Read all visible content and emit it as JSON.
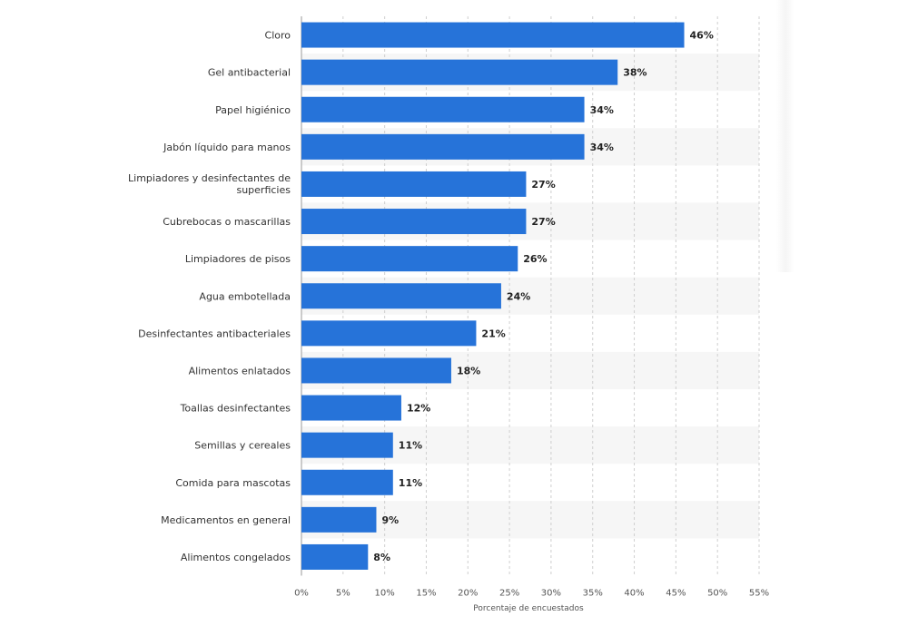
{
  "chart_data": {
    "type": "bar",
    "orientation": "horizontal",
    "title": "",
    "xlabel": "Porcentaje de encuestados",
    "ylabel": "",
    "xlim": [
      0,
      55
    ],
    "grid": true,
    "categories": [
      "Cloro",
      "Gel antibacterial",
      "Papel higiénico",
      "Jabón líquido para manos",
      "Limpiadores y desinfectantes de superficies",
      "Cubrebocas o mascarillas",
      "Limpiadores de pisos",
      "Agua embotellada",
      "Desinfectantes antibacteriales",
      "Alimentos enlatados",
      "Toallas desinfectantes",
      "Semillas y cereales",
      "Comida para mascotas",
      "Medicamentos en general",
      "Alimentos congelados"
    ],
    "values": [
      46,
      38,
      34,
      34,
      27,
      27,
      26,
      24,
      21,
      18,
      12,
      11,
      11,
      9,
      8
    ],
    "value_labels": [
      "46%",
      "38%",
      "34%",
      "34%",
      "27%",
      "27%",
      "26%",
      "24%",
      "21%",
      "18%",
      "12%",
      "11%",
      "11%",
      "9%",
      "8%"
    ],
    "x_ticks": [
      0,
      5,
      10,
      15,
      20,
      25,
      30,
      35,
      40,
      45,
      50,
      55
    ],
    "x_tick_labels": [
      "0%",
      "5%",
      "10%",
      "15%",
      "20%",
      "25%",
      "30%",
      "35%",
      "40%",
      "45%",
      "50%",
      "55%"
    ],
    "colors": {
      "bar": "#2673d9",
      "grid": "#cfcfcf",
      "stripe": "#f6f6f6",
      "label_text": "#333333",
      "value_text": "#222222",
      "tick_text": "#555555"
    }
  }
}
